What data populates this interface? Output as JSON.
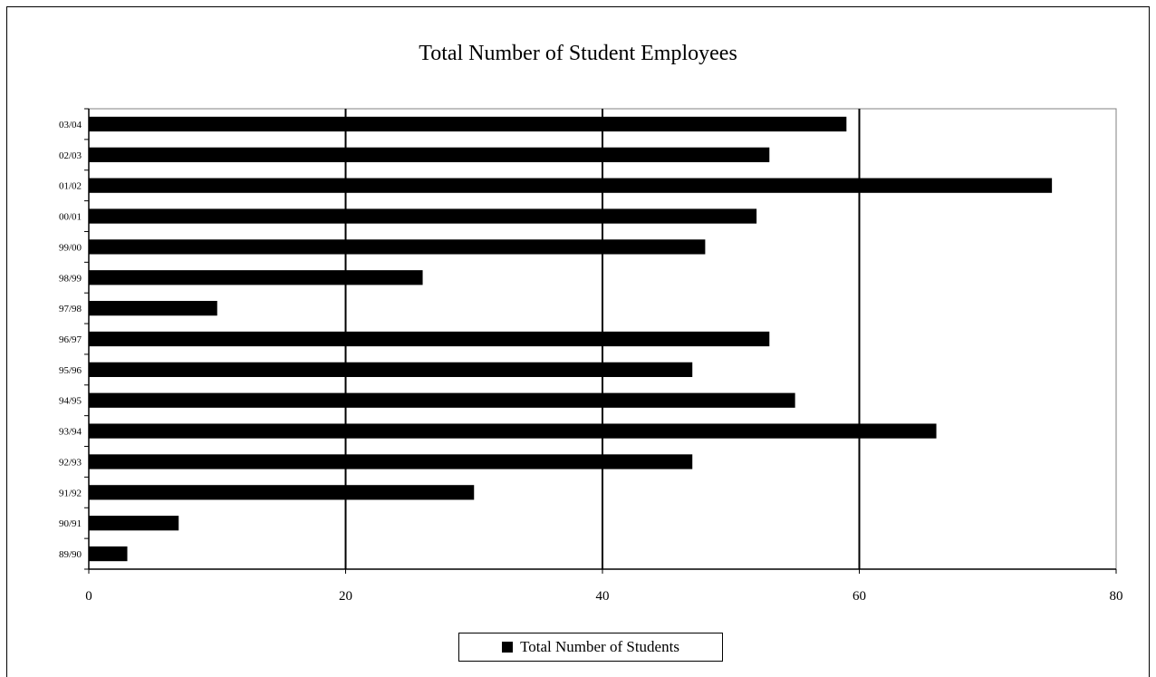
{
  "chart_data": {
    "type": "bar",
    "orientation": "horizontal",
    "title": "Total Number of Student Employees",
    "xlabel": "",
    "ylabel": "",
    "categories": [
      "89/90",
      "90/91",
      "91/92",
      "92/93",
      "93/94",
      "94/95",
      "95/96",
      "96/97",
      "97/98",
      "98/99",
      "99/00",
      "00/01",
      "01/02",
      "02/03",
      "03/04"
    ],
    "series": [
      {
        "name": "Total Number of Students",
        "values": [
          3,
          7,
          30,
          47,
          66,
          55,
          47,
          53,
          10,
          26,
          48,
          52,
          75,
          53,
          59
        ]
      }
    ],
    "xlim": [
      0,
      80
    ],
    "xticks": [
      0,
      20,
      40,
      60,
      80
    ],
    "grid": "vertical-major",
    "legend_position": "bottom-center",
    "colors": {
      "bar": "#000000",
      "grid": "#000000",
      "plot_border": "#808080"
    }
  }
}
